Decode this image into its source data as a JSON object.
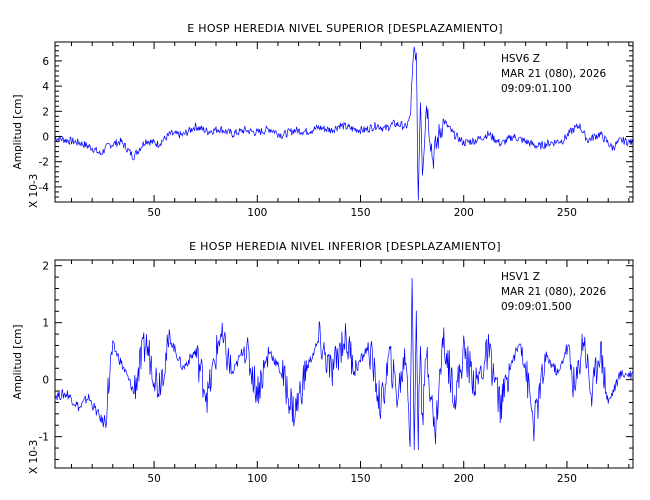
{
  "chart_data": [
    {
      "type": "line",
      "title": "E HOSP HEREDIA NIVEL SUPERIOR [DESPLAZAMIENTO]",
      "ylabel": "Amplitud [cm]",
      "yscale_label": "X 10-3",
      "xlim": [
        2,
        282
      ],
      "ylim": [
        -5.2,
        7.5
      ],
      "xticks": [
        50,
        100,
        150,
        200,
        250
      ],
      "yticks": [
        -4,
        -2,
        0,
        2,
        4,
        6
      ],
      "annotations": [
        "HSV6   Z",
        "MAR 21 (080), 2026",
        "09:09:01.100"
      ],
      "line_color": "#0000ff",
      "series": [
        {
          "x": [
            2,
            8,
            14,
            20,
            24,
            28,
            34,
            40,
            46,
            52,
            58,
            64,
            70,
            76,
            82,
            88,
            94,
            100,
            106,
            112,
            118,
            124,
            130,
            136,
            140,
            146,
            152,
            158,
            162,
            166,
            170,
            172,
            174,
            175,
            176,
            177,
            178,
            179,
            180,
            182,
            185,
            190,
            195,
            200,
            206,
            212,
            218,
            224,
            230,
            236,
            242,
            248,
            252,
            256,
            260,
            266,
            272,
            276,
            282
          ],
          "values": [
            -0.1,
            -0.3,
            -0.5,
            -0.9,
            -1.4,
            -0.7,
            -0.4,
            -1.6,
            -0.3,
            -0.6,
            0.2,
            0.1,
            0.8,
            0.4,
            0.6,
            0.2,
            0.5,
            0.3,
            0.6,
            0.1,
            0.5,
            0.4,
            0.7,
            0.5,
            0.9,
            0.6,
            0.5,
            0.9,
            0.6,
            1.0,
            0.9,
            0.7,
            1.5,
            4.0,
            7.0,
            6.0,
            -5.0,
            3.5,
            -2.5,
            2.8,
            -1.8,
            1.3,
            0.2,
            -0.5,
            -0.3,
            0.2,
            -0.6,
            0.0,
            -0.4,
            -0.8,
            -0.5,
            -0.3,
            0.4,
            0.9,
            -0.3,
            0.2,
            -0.9,
            -0.3,
            -0.5
          ]
        }
      ]
    },
    {
      "type": "line",
      "title": "E HOSP HEREDIA NIVEL INFERIOR [DESPLAZAMIENTO]",
      "ylabel": "Amplitud [cm]",
      "yscale_label": "X 10-3",
      "xlim": [
        2,
        282
      ],
      "ylim": [
        -1.55,
        2.1
      ],
      "xticks": [
        50,
        100,
        150,
        200,
        250
      ],
      "yticks": [
        -1,
        0,
        1,
        2
      ],
      "annotations": [
        "HSV1   Z",
        "MAR 21 (080), 2026",
        "09:09:01.500"
      ],
      "line_color": "#0000ff",
      "series": [
        {
          "x": [
            2,
            8,
            14,
            18,
            22,
            26,
            30,
            34,
            40,
            46,
            52,
            58,
            64,
            70,
            76,
            82,
            88,
            94,
            100,
            106,
            112,
            118,
            124,
            130,
            136,
            142,
            148,
            154,
            160,
            164,
            168,
            172,
            174,
            175,
            176,
            177,
            178,
            179,
            180,
            182,
            186,
            190,
            196,
            200,
            206,
            212,
            218,
            222,
            228,
            234,
            240,
            246,
            250,
            254,
            258,
            262,
            266,
            270,
            276,
            282
          ],
          "values": [
            -0.28,
            -0.25,
            -0.5,
            -0.3,
            -0.55,
            -0.8,
            0.6,
            0.3,
            -0.2,
            0.65,
            -0.1,
            0.7,
            0.2,
            0.5,
            -0.3,
            0.8,
            0.1,
            0.6,
            -0.2,
            0.5,
            0.1,
            -0.6,
            0.2,
            0.7,
            0.1,
            0.75,
            0.2,
            0.6,
            -0.5,
            0.4,
            -0.3,
            0.5,
            -1.0,
            1.95,
            -1.45,
            1.3,
            -1.1,
            0.9,
            -0.9,
            0.6,
            -1.0,
            0.7,
            -0.3,
            0.5,
            -0.1,
            0.5,
            -0.5,
            0.2,
            0.7,
            -0.8,
            0.4,
            0.1,
            0.6,
            -0.2,
            0.8,
            -0.3,
            0.6,
            -0.4,
            0.1,
            0.1
          ]
        }
      ]
    }
  ]
}
